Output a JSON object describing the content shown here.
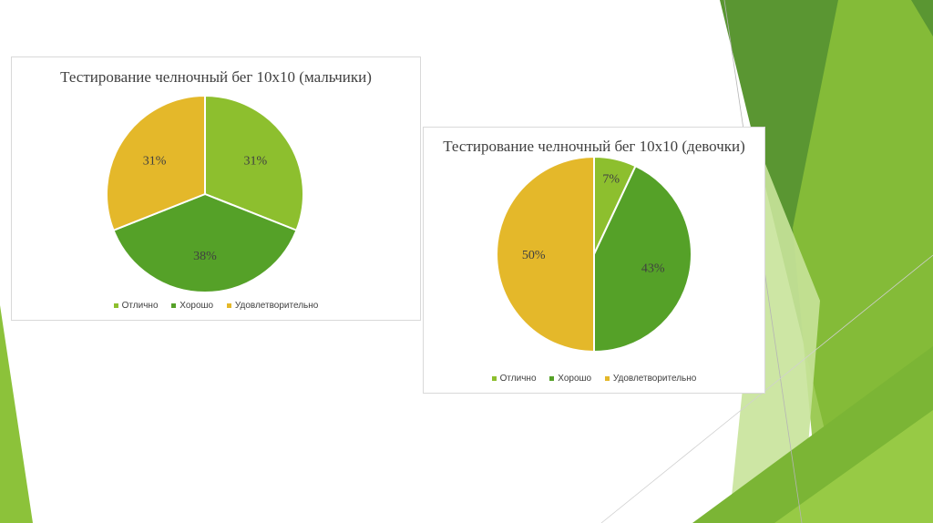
{
  "colors": {
    "excellent": "#8dbf2e",
    "good": "#55a128",
    "satisfactory": "#e4b82a",
    "bg_dark": "#5a9632",
    "bg_light": "#8cc23a",
    "bg_pale": "#c8e39a"
  },
  "legend": [
    "Отлично",
    "Хорошо",
    "Удовлетворительно"
  ],
  "chart_data": [
    {
      "type": "pie",
      "title": "Тестирование челночный бег 10х10 (мальчики)",
      "categories": [
        "Отлично",
        "Хорошо",
        "Удовлетворительно"
      ],
      "values": [
        31,
        38,
        31
      ],
      "labels": [
        "31%",
        "38%",
        "31%"
      ],
      "legend_position": "bottom"
    },
    {
      "type": "pie",
      "title": "Тестирование челночный бег 10х10 (девочки)",
      "categories": [
        "Отлично",
        "Хорошо",
        "Удовлетворительно"
      ],
      "values": [
        7,
        43,
        50
      ],
      "labels": [
        "7%",
        "43%",
        "50%"
      ],
      "legend_position": "bottom"
    }
  ]
}
